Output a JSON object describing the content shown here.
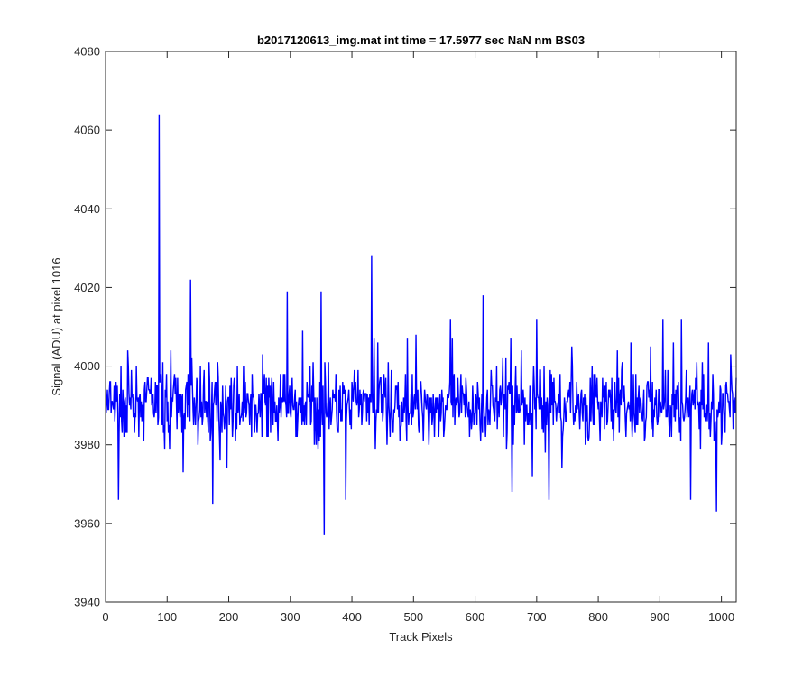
{
  "chart_data": {
    "type": "line",
    "title": "b2017120613_img.mat int time = 17.5977 sec  NaN nm BS03",
    "xlabel": "Track Pixels",
    "ylabel": "Signal (ADU) at pixel 1016",
    "xlim": [
      0,
      1024
    ],
    "ylim": [
      3940,
      4080
    ],
    "xticks": [
      0,
      100,
      200,
      300,
      400,
      500,
      600,
      700,
      800,
      900,
      1000
    ],
    "yticks": [
      3940,
      3960,
      3980,
      4000,
      4020,
      4040,
      4060,
      4080
    ],
    "grid": false,
    "series": [
      {
        "color": "#0000ff",
        "x_start": 1,
        "x_step": 1,
        "baseline": 3990,
        "noise_amplitude": 8,
        "seed": 7,
        "count": 1024,
        "peaks": [
          {
            "x": 87,
            "y": 4064
          },
          {
            "x": 432,
            "y": 4028
          },
          {
            "x": 138,
            "y": 4022
          },
          {
            "x": 613,
            "y": 4018
          },
          {
            "x": 295,
            "y": 4019
          },
          {
            "x": 350,
            "y": 4019
          },
          {
            "x": 905,
            "y": 4012
          },
          {
            "x": 935,
            "y": 4012
          },
          {
            "x": 700,
            "y": 4012
          },
          {
            "x": 560,
            "y": 4012
          },
          {
            "x": 355,
            "y": 3957
          },
          {
            "x": 21,
            "y": 3966
          },
          {
            "x": 174,
            "y": 3965
          },
          {
            "x": 390,
            "y": 3966
          },
          {
            "x": 660,
            "y": 3968
          },
          {
            "x": 720,
            "y": 3966
          },
          {
            "x": 950,
            "y": 3966
          },
          {
            "x": 992,
            "y": 3963
          }
        ]
      }
    ]
  }
}
